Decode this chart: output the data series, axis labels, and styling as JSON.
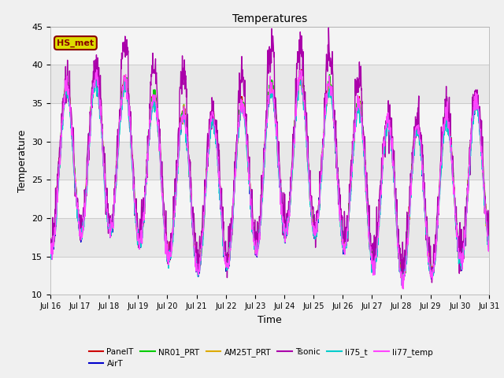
{
  "title": "Temperatures",
  "xlabel": "Time",
  "ylabel": "Temperature",
  "ylim": [
    10,
    45
  ],
  "background_color": "#e8e8e8",
  "fig_color": "#f0f0f0",
  "series": {
    "PanelT": {
      "color": "#cc0000",
      "lw": 1.0
    },
    "AirT": {
      "color": "#0000cc",
      "lw": 1.0
    },
    "NR01_PRT": {
      "color": "#00cc00",
      "lw": 1.0
    },
    "AM25T_PRT": {
      "color": "#ddaa00",
      "lw": 1.0
    },
    "Tsonic": {
      "color": "#aa00aa",
      "lw": 1.0
    },
    "li75_t": {
      "color": "#00cccc",
      "lw": 1.0
    },
    "li77_temp": {
      "color": "#ff44ff",
      "lw": 1.0
    }
  },
  "xtick_labels": [
    "Jul 16",
    "Jul 17",
    "Jul 18",
    "Jul 19",
    "Jul 20",
    "Jul 21",
    "Jul 22",
    "Jul 23",
    "Jul 24",
    "Jul 25",
    "Jul 26",
    "Jul 27",
    "Jul 28",
    "Jul 29",
    "Jul 30",
    "Jul 31"
  ],
  "ytick_labels": [
    10,
    15,
    20,
    25,
    30,
    35,
    40,
    45
  ],
  "annotation_text": "HS_met",
  "annotation_bg": "#dddd00",
  "annotation_border": "#880000",
  "n_days": 15,
  "pts_per_day": 96
}
